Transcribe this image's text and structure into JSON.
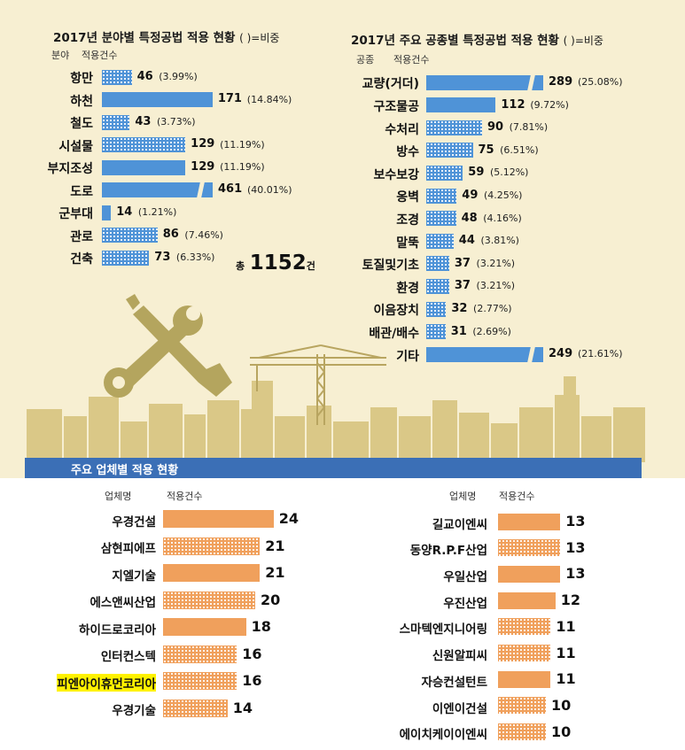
{
  "left_chart": {
    "title": "2017년 분야별 특정공법 적용 현황",
    "title_note": "( )=비중",
    "col_category": "분야",
    "col_count": "적용건수",
    "total_prefix": "총",
    "total_value": "1152",
    "total_unit": "건"
  },
  "right_chart": {
    "title": "2017년 주요 공종별 특정공법 적용 현황",
    "title_note": "( )=비중",
    "col_category": "공종",
    "col_count": "적용건수"
  },
  "banner": {
    "title": "주요 업체별 적용 현황"
  },
  "company_left": {
    "col_company": "업체명",
    "col_count": "적용건수"
  },
  "company_right": {
    "col_company": "업체명",
    "col_count": "적용건수"
  },
  "colors": {
    "blue_bar": "#4f93d7",
    "orange_bar": "#f0a05c",
    "banner": "#3b6fb6",
    "background": "#f7efd2",
    "highlight": "#fff200"
  },
  "icons": [
    "wrench-screwdriver-icon",
    "tower-crane-icon",
    "city-skyline-icon"
  ],
  "chart_data": [
    {
      "type": "bar",
      "orientation": "horizontal",
      "title": "2017년 분야별 특정공법 적용 현황",
      "categories": [
        "항만",
        "하천",
        "철도",
        "시설물",
        "부지조성",
        "도로",
        "군부대",
        "관로",
        "건축"
      ],
      "values": [
        46,
        171,
        43,
        129,
        129,
        461,
        14,
        86,
        73
      ],
      "labels": [
        "(3.99%)",
        "(14.84%)",
        "(3.73%)",
        "(11.19%)",
        "(11.19%)",
        "(40.01%)",
        "(1.21%)",
        "(7.46%)",
        "(6.33%)"
      ],
      "patterned": [
        true,
        false,
        true,
        true,
        false,
        false,
        false,
        true,
        true
      ],
      "broken": [
        false,
        false,
        false,
        false,
        false,
        true,
        false,
        false,
        false
      ]
    },
    {
      "type": "bar",
      "orientation": "horizontal",
      "title": "2017년 주요 공종별 특정공법 적용 현황",
      "categories": [
        "교량(거더)",
        "구조물공",
        "수처리",
        "방수",
        "보수보강",
        "옹벽",
        "조경",
        "말뚝",
        "토질및기초",
        "환경",
        "이음장치",
        "배관/배수",
        "기타"
      ],
      "values": [
        289,
        112,
        90,
        75,
        59,
        49,
        48,
        44,
        37,
        37,
        32,
        31,
        249
      ],
      "labels": [
        "(25.08%)",
        "(9.72%)",
        "(7.81%)",
        "(6.51%)",
        "(5.12%)",
        "(4.25%)",
        "(4.16%)",
        "(3.81%)",
        "(3.21%)",
        "(3.21%)",
        "(2.77%)",
        "(2.69%)",
        "(21.61%)"
      ],
      "patterned": [
        false,
        false,
        true,
        true,
        true,
        true,
        true,
        true,
        true,
        true,
        true,
        true,
        false
      ],
      "broken": [
        true,
        false,
        false,
        false,
        false,
        false,
        false,
        false,
        false,
        false,
        false,
        false,
        true
      ]
    },
    {
      "type": "bar",
      "orientation": "horizontal",
      "title": "주요 업체별 적용 현황",
      "categories": [
        "우경건설",
        "삼현피에프",
        "지엘기술",
        "에스앤씨산업",
        "하이드로코리아",
        "인터컨스텍",
        "피엔아이휴먼코리아",
        "우경기술"
      ],
      "values": [
        24,
        21,
        21,
        20,
        18,
        16,
        16,
        14
      ],
      "patterned": [
        false,
        true,
        false,
        true,
        false,
        true,
        true,
        true
      ],
      "highlighted": [
        false,
        false,
        false,
        false,
        false,
        false,
        true,
        false
      ]
    },
    {
      "type": "bar",
      "orientation": "horizontal",
      "title": "주요 업체별 적용 현황",
      "categories": [
        "길교이엔씨",
        "동양R.P.F산업",
        "우일산업",
        "우진산업",
        "스마텍엔지니어링",
        "신원알피씨",
        "자승컨설턴트",
        "이엔이건설",
        "에이치케이이엔씨"
      ],
      "values": [
        13,
        13,
        13,
        12,
        11,
        11,
        11,
        10,
        10
      ],
      "patterned": [
        false,
        true,
        false,
        false,
        true,
        true,
        false,
        true,
        true
      ]
    }
  ]
}
